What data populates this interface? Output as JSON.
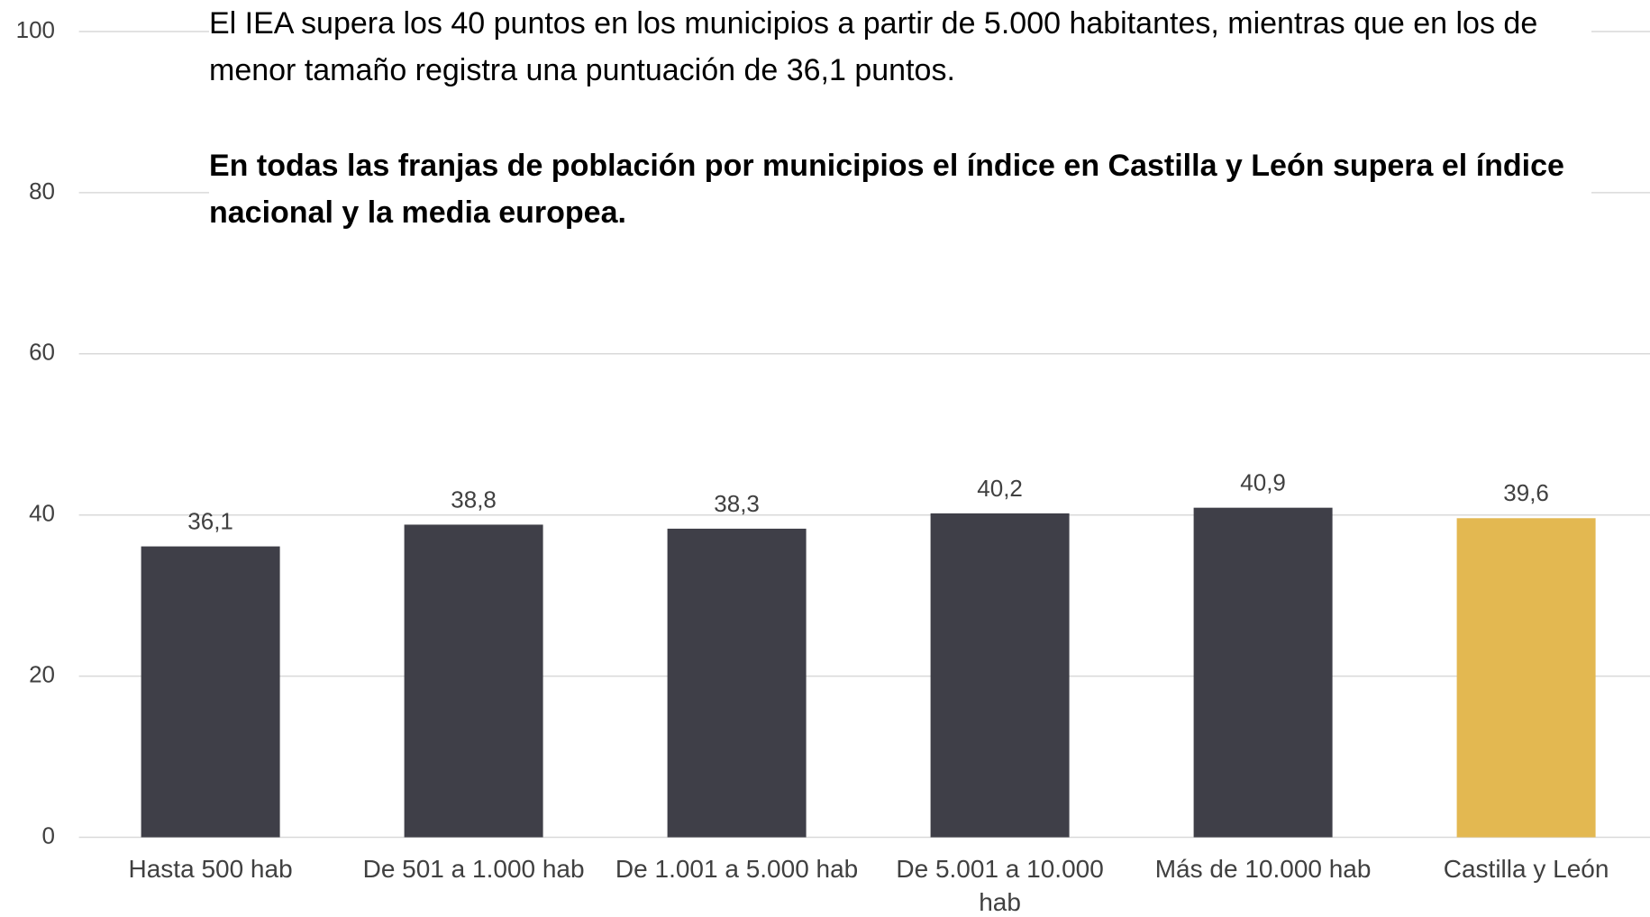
{
  "chart_data": {
    "type": "bar",
    "annotations": [
      "El IEA supera los 40 puntos en los municipios a partir de 5.000 habitantes, mientras que en los de menor tamaño registra una puntuación de 36,1 puntos.",
      "En todas las franjas de población por municipios el índice en Castilla y León supera el índice nacional y la media europea."
    ],
    "categories": [
      "Hasta 500 hab",
      "De 501 a 1.000 hab",
      "De 1.001 a 5.000 hab",
      "De 5.001 a 10.000 hab",
      "Más de 10.000 hab",
      "Castilla y León"
    ],
    "values": [
      36.1,
      38.8,
      38.3,
      40.2,
      40.9,
      39.6
    ],
    "value_labels": [
      "36,1",
      "38,8",
      "38,3",
      "40,2",
      "40,9",
      "39,6"
    ],
    "colors": [
      "#3f3f48",
      "#3f3f48",
      "#3f3f48",
      "#3f3f48",
      "#3f3f48",
      "#e3b851"
    ],
    "ylim": [
      0,
      100
    ],
    "yticks": [
      0,
      20,
      40,
      60,
      80,
      100
    ],
    "grid": true
  }
}
